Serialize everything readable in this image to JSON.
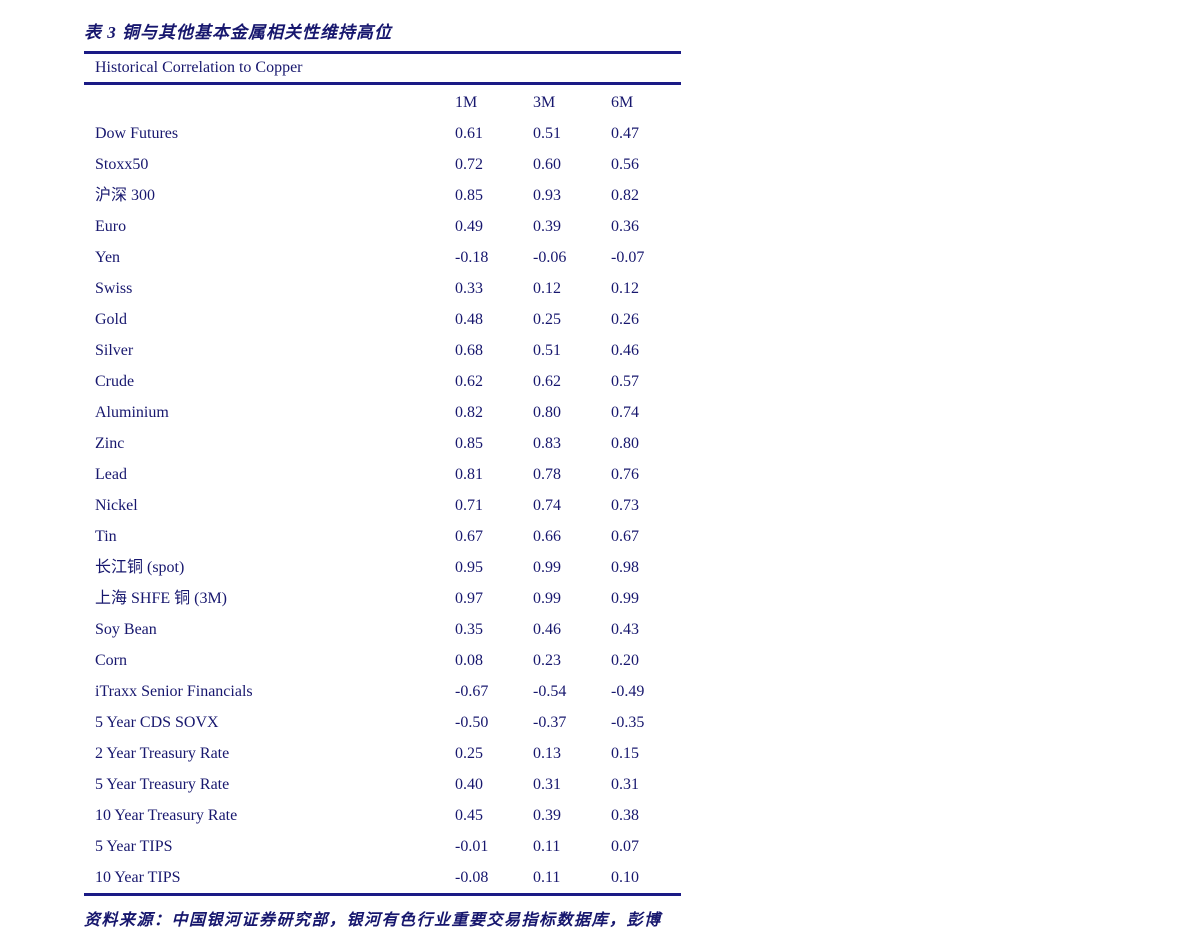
{
  "document": {
    "title": "表 3 铜与其他基本金属相关性维持高位",
    "table": {
      "header": "Historical Correlation to Copper",
      "columns": [
        "1M",
        "3M",
        "6M"
      ],
      "rows": [
        {
          "label": "Dow Futures",
          "values": [
            "0.61",
            "0.51",
            "0.47"
          ]
        },
        {
          "label": "Stoxx50",
          "values": [
            "0.72",
            "0.60",
            "0.56"
          ]
        },
        {
          "label": "沪深 300",
          "values": [
            "0.85",
            "0.93",
            "0.82"
          ]
        },
        {
          "label": "Euro",
          "values": [
            "0.49",
            "0.39",
            "0.36"
          ]
        },
        {
          "label": "Yen",
          "values": [
            "-0.18",
            "-0.06",
            "-0.07"
          ]
        },
        {
          "label": "Swiss",
          "values": [
            "0.33",
            "0.12",
            "0.12"
          ]
        },
        {
          "label": "Gold",
          "values": [
            "0.48",
            "0.25",
            "0.26"
          ]
        },
        {
          "label": "Silver",
          "values": [
            "0.68",
            "0.51",
            "0.46"
          ]
        },
        {
          "label": "Crude",
          "values": [
            "0.62",
            "0.62",
            "0.57"
          ]
        },
        {
          "label": "Aluminium",
          "values": [
            "0.82",
            "0.80",
            "0.74"
          ]
        },
        {
          "label": "Zinc",
          "values": [
            "0.85",
            "0.83",
            "0.80"
          ]
        },
        {
          "label": "Lead",
          "values": [
            "0.81",
            "0.78",
            "0.76"
          ]
        },
        {
          "label": "Nickel",
          "values": [
            "0.71",
            "0.74",
            "0.73"
          ]
        },
        {
          "label": "Tin",
          "values": [
            "0.67",
            "0.66",
            "0.67"
          ]
        },
        {
          "label": "长江铜 (spot)",
          "values": [
            "0.95",
            "0.99",
            "0.98"
          ]
        },
        {
          "label": "上海 SHFE 铜 (3M)",
          "values": [
            "0.97",
            "0.99",
            "0.99"
          ]
        },
        {
          "label": "Soy Bean",
          "values": [
            "0.35",
            "0.46",
            "0.43"
          ]
        },
        {
          "label": "Corn",
          "values": [
            "0.08",
            "0.23",
            "0.20"
          ]
        },
        {
          "label": "iTraxx Senior Financials",
          "values": [
            "-0.67",
            "-0.54",
            "-0.49"
          ]
        },
        {
          "label": "5 Year CDS SOVX",
          "values": [
            "-0.50",
            "-0.37",
            "-0.35"
          ]
        },
        {
          "label": "2 Year Treasury Rate",
          "values": [
            "0.25",
            "0.13",
            "0.15"
          ]
        },
        {
          "label": "5 Year Treasury Rate",
          "values": [
            "0.40",
            "0.31",
            "0.31"
          ]
        },
        {
          "label": "10 Year Treasury Rate",
          "values": [
            "0.45",
            "0.39",
            "0.38"
          ]
        },
        {
          "label": "5 Year TIPS",
          "values": [
            "-0.01",
            "0.11",
            "0.07"
          ]
        },
        {
          "label": "10 Year TIPS",
          "values": [
            "-0.08",
            "0.11",
            "0.10"
          ]
        }
      ]
    },
    "footer": "资料来源：中国银河证券研究部，银河有色行业重要交易指标数据库，彭博"
  },
  "colors": {
    "text": "#17176e",
    "rule": "#1a1a85",
    "background": "#ffffff"
  }
}
